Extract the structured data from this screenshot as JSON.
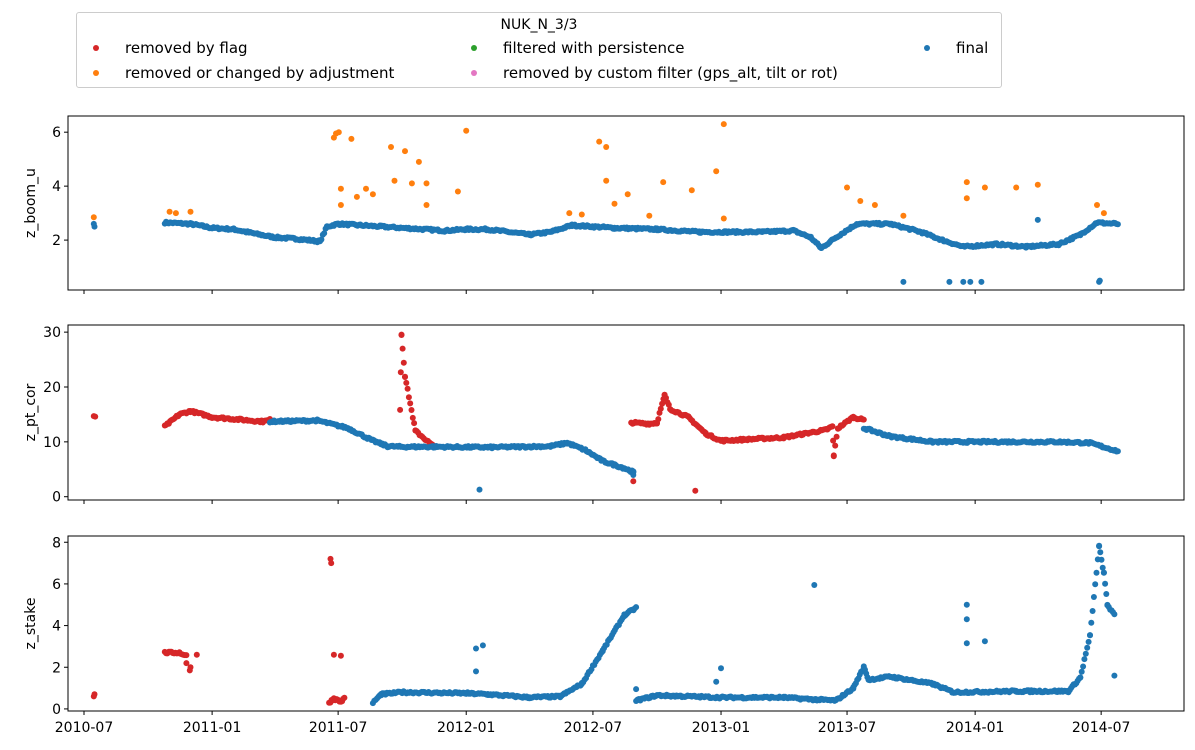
{
  "legend": {
    "title": "NUK_N_3/3",
    "items": [
      {
        "label": "removed by flag",
        "color": "#d62728"
      },
      {
        "label": "removed or changed by adjustment",
        "color": "#ff7f0e"
      },
      {
        "label": "filtered with persistence",
        "color": "#2ca02c"
      },
      {
        "label": "removed by custom filter (gps_alt, tilt or rot)",
        "color": "#e377c2"
      },
      {
        "label": "final",
        "color": "#1f77b4"
      }
    ]
  },
  "chart_data": [
    {
      "type": "scatter",
      "ylabel": "z_boom_u",
      "ylim": [
        0.15,
        6.6
      ],
      "yticks": [
        2,
        4,
        6
      ],
      "xlim": [
        "2010-06-08",
        "2014-10-28"
      ],
      "grid": false,
      "series": [
        {
          "name": "removed or changed by adjustment",
          "color": "#ff7f0e",
          "points": [
            [
              "2010-07-15",
              2.85
            ],
            [
              "2010-11-01",
              3.05
            ],
            [
              "2010-11-10",
              3.0
            ],
            [
              "2010-12-01",
              3.05
            ],
            [
              "2011-06-25",
              5.8
            ],
            [
              "2011-06-28",
              5.95
            ],
            [
              "2011-07-02",
              6.0
            ],
            [
              "2011-07-05",
              3.9
            ],
            [
              "2011-07-05",
              3.3
            ],
            [
              "2011-07-20",
              5.75
            ],
            [
              "2011-07-28",
              3.6
            ],
            [
              "2011-08-10",
              3.9
            ],
            [
              "2011-08-20",
              3.7
            ],
            [
              "2011-09-15",
              5.45
            ],
            [
              "2011-09-20",
              4.2
            ],
            [
              "2011-10-05",
              5.3
            ],
            [
              "2011-10-15",
              4.1
            ],
            [
              "2011-10-25",
              4.9
            ],
            [
              "2011-11-05",
              4.1
            ],
            [
              "2011-11-05",
              3.3
            ],
            [
              "2011-12-20",
              3.8
            ],
            [
              "2012-01-01",
              6.05
            ],
            [
              "2012-05-28",
              3.0
            ],
            [
              "2012-06-15",
              2.95
            ],
            [
              "2012-07-10",
              5.65
            ],
            [
              "2012-07-20",
              5.45
            ],
            [
              "2012-07-20",
              4.2
            ],
            [
              "2012-08-01",
              3.35
            ],
            [
              "2012-08-20",
              3.7
            ],
            [
              "2012-09-20",
              2.9
            ],
            [
              "2012-10-10",
              4.15
            ],
            [
              "2012-11-20",
              3.85
            ],
            [
              "2012-12-25",
              4.55
            ],
            [
              "2013-01-05",
              6.3
            ],
            [
              "2013-01-05",
              2.8
            ],
            [
              "2013-07-01",
              3.95
            ],
            [
              "2013-07-20",
              3.45
            ],
            [
              "2013-08-10",
              3.3
            ],
            [
              "2013-09-20",
              2.9
            ],
            [
              "2013-12-20",
              4.15
            ],
            [
              "2013-12-20",
              3.55
            ],
            [
              "2014-01-15",
              3.95
            ],
            [
              "2014-03-01",
              3.95
            ],
            [
              "2014-04-01",
              4.05
            ],
            [
              "2014-06-25",
              3.3
            ],
            [
              "2014-07-05",
              3.0
            ]
          ]
        },
        {
          "name": "final",
          "color": "#1f77b4",
          "points": [
            [
              "2010-07-15",
              2.6
            ],
            [
              "2010-07-16",
              2.5
            ],
            [
              "2013-09-20",
              0.45
            ],
            [
              "2013-11-25",
              0.45
            ],
            [
              "2013-12-15",
              0.45
            ],
            [
              "2013-12-25",
              0.45
            ],
            [
              "2014-01-10",
              0.45
            ],
            [
              "2014-04-01",
              2.75
            ],
            [
              "2014-06-28",
              0.45
            ],
            [
              "2014-06-29",
              0.5
            ]
          ],
          "line": [
            [
              "2010-10-25",
              2.65
            ],
            [
              "2010-12-01",
              2.6
            ],
            [
              "2011-01-01",
              2.45
            ],
            [
              "2011-02-01",
              2.4
            ],
            [
              "2011-03-01",
              2.25
            ],
            [
              "2011-04-01",
              2.1
            ],
            [
              "2011-05-01",
              2.05
            ],
            [
              "2011-06-05",
              1.95
            ],
            [
              "2011-06-15",
              2.5
            ],
            [
              "2011-07-01",
              2.6
            ],
            [
              "2011-09-01",
              2.5
            ],
            [
              "2011-12-01",
              2.35
            ],
            [
              "2012-01-01",
              2.4
            ],
            [
              "2012-02-01",
              2.4
            ],
            [
              "2012-04-01",
              2.2
            ],
            [
              "2012-05-01",
              2.3
            ],
            [
              "2012-06-01",
              2.55
            ],
            [
              "2012-08-01",
              2.45
            ],
            [
              "2012-10-01",
              2.4
            ],
            [
              "2012-12-01",
              2.3
            ],
            [
              "2013-03-01",
              2.3
            ],
            [
              "2013-04-15",
              2.35
            ],
            [
              "2013-05-10",
              2.1
            ],
            [
              "2013-05-25",
              1.7
            ],
            [
              "2013-06-15",
              2.1
            ],
            [
              "2013-07-15",
              2.6
            ],
            [
              "2013-09-01",
              2.6
            ],
            [
              "2013-10-15",
              2.3
            ],
            [
              "2013-11-15",
              2.0
            ],
            [
              "2013-12-15",
              1.75
            ],
            [
              "2014-02-01",
              1.85
            ],
            [
              "2014-03-15",
              1.75
            ],
            [
              "2014-05-01",
              1.85
            ],
            [
              "2014-06-01",
              2.2
            ],
            [
              "2014-06-25",
              2.65
            ],
            [
              "2014-07-25",
              2.6
            ]
          ],
          "gaps": [
            [
              "2010-07-20",
              "2010-10-24"
            ]
          ]
        }
      ]
    },
    {
      "type": "scatter",
      "ylabel": "z_pt_cor",
      "ylim": [
        -0.6,
        31.3
      ],
      "yticks": [
        0,
        10,
        20,
        30
      ],
      "xlim": [
        "2010-06-08",
        "2014-10-28"
      ],
      "grid": false,
      "series": [
        {
          "name": "removed by flag",
          "color": "#d62728",
          "points": [
            [
              "2010-07-15",
              14.7
            ],
            [
              "2010-07-17",
              14.6
            ],
            [
              "2012-08-28",
              2.8
            ],
            [
              "2012-11-25",
              1.1
            ]
          ],
          "line": [
            [
              "2010-10-25",
              12.8
            ],
            [
              "2010-11-15",
              15.0
            ],
            [
              "2010-12-01",
              15.6
            ],
            [
              "2011-01-01",
              14.5
            ],
            [
              "2011-03-15",
              13.7
            ],
            [
              "2011-03-25",
              14.0
            ]
          ],
          "line2": [
            [
              "2011-09-28",
              16.0
            ],
            [
              "2011-09-30",
              29.6
            ],
            [
              "2011-10-05",
              22.0
            ],
            [
              "2011-10-20",
              12.0
            ],
            [
              "2011-11-15",
              9.2
            ]
          ],
          "line3": [
            [
              "2012-08-25",
              13.5
            ],
            [
              "2012-09-20",
              13.3
            ],
            [
              "2012-10-01",
              13.5
            ],
            [
              "2012-10-12",
              18.5
            ],
            [
              "2012-10-20",
              16.0
            ],
            [
              "2012-11-15",
              14.5
            ],
            [
              "2012-12-10",
              11.5
            ],
            [
              "2013-01-01",
              10.2
            ],
            [
              "2013-04-01",
              10.8
            ],
            [
              "2013-06-01",
              12.2
            ],
            [
              "2013-06-10",
              12.8
            ],
            [
              "2013-06-12",
              7.5
            ],
            [
              "2013-06-18",
              12.5
            ],
            [
              "2013-07-10",
              14.5
            ],
            [
              "2013-07-25",
              14.0
            ]
          ]
        },
        {
          "name": "final",
          "color": "#1f77b4",
          "points": [
            [
              "2012-01-20",
              1.3
            ]
          ],
          "line": [
            [
              "2011-03-25",
              13.7
            ],
            [
              "2011-06-01",
              13.9
            ],
            [
              "2011-07-15",
              12.5
            ],
            [
              "2011-08-20",
              10.2
            ],
            [
              "2011-09-10",
              9.2
            ],
            [
              "2011-09-27",
              9.1
            ],
            [
              "2011-11-15",
              9.1
            ],
            [
              "2012-02-01",
              9.0
            ],
            [
              "2012-05-01",
              9.2
            ],
            [
              "2012-05-25",
              9.8
            ],
            [
              "2012-06-20",
              8.5
            ],
            [
              "2012-07-15",
              6.5
            ],
            [
              "2012-08-15",
              5.2
            ],
            [
              "2012-08-28",
              4.5
            ],
            [
              "2012-08-28",
              4.0
            ]
          ],
          "line2": [
            [
              "2013-07-25",
              12.5
            ],
            [
              "2013-09-01",
              11.0
            ],
            [
              "2013-11-01",
              10.0
            ],
            [
              "2014-05-01",
              10.0
            ],
            [
              "2014-06-15",
              9.8
            ],
            [
              "2014-07-25",
              8.3
            ]
          ]
        }
      ]
    },
    {
      "type": "scatter",
      "ylabel": "z_stake",
      "ylim": [
        -0.1,
        8.3
      ],
      "yticks": [
        0,
        2,
        4,
        6,
        8
      ],
      "xlim": [
        "2010-06-08",
        "2014-10-28"
      ],
      "grid": false,
      "series": [
        {
          "name": "removed by flag",
          "color": "#d62728",
          "points": [
            [
              "2010-07-15",
              0.6
            ],
            [
              "2010-07-16",
              0.7
            ],
            [
              "2011-06-20",
              7.2
            ],
            [
              "2011-06-21",
              7.0
            ],
            [
              "2011-06-25",
              2.6
            ],
            [
              "2011-07-05",
              2.55
            ],
            [
              "2010-11-25",
              2.2
            ],
            [
              "2010-11-30",
              1.85
            ],
            [
              "2010-12-01",
              2.0
            ],
            [
              "2010-12-10",
              2.6
            ]
          ],
          "line": [
            [
              "2010-10-25",
              2.7
            ],
            [
              "2010-11-15",
              2.7
            ],
            [
              "2010-11-25",
              2.55
            ]
          ],
          "line2": [
            [
              "2011-06-18",
              0.3
            ],
            [
              "2011-06-25",
              0.5
            ],
            [
              "2011-07-05",
              0.35
            ],
            [
              "2011-07-10",
              0.5
            ]
          ]
        },
        {
          "name": "final",
          "color": "#1f77b4",
          "points": [
            [
              "2012-01-15",
              2.9
            ],
            [
              "2012-01-25",
              3.05
            ],
            [
              "2012-01-15",
              1.8
            ],
            [
              "2012-09-01",
              0.95
            ],
            [
              "2013-01-01",
              1.95
            ],
            [
              "2012-12-25",
              1.3
            ],
            [
              "2013-05-15",
              5.95
            ],
            [
              "2013-12-20",
              5.0
            ],
            [
              "2013-12-20",
              4.3
            ],
            [
              "2013-12-20",
              3.15
            ],
            [
              "2014-01-15",
              3.25
            ],
            [
              "2014-07-20",
              1.6
            ]
          ],
          "line": [
            [
              "2011-08-20",
              0.3
            ],
            [
              "2011-09-01",
              0.7
            ],
            [
              "2011-10-01",
              0.8
            ],
            [
              "2012-01-01",
              0.75
            ],
            [
              "2012-02-01",
              0.7
            ],
            [
              "2012-04-01",
              0.55
            ],
            [
              "2012-05-15",
              0.6
            ],
            [
              "2012-06-15",
              1.2
            ],
            [
              "2012-07-15",
              2.8
            ],
            [
              "2012-08-15",
              4.5
            ],
            [
              "2012-09-01",
              4.85
            ]
          ],
          "line2": [
            [
              "2012-09-01",
              0.4
            ],
            [
              "2012-10-01",
              0.65
            ],
            [
              "2013-01-01",
              0.55
            ],
            [
              "2013-04-01",
              0.55
            ],
            [
              "2013-05-15",
              0.45
            ],
            [
              "2013-06-15",
              0.4
            ],
            [
              "2013-07-10",
              1.0
            ],
            [
              "2013-07-25",
              2.0
            ],
            [
              "2013-08-01",
              1.4
            ],
            [
              "2013-09-01",
              1.55
            ],
            [
              "2013-11-01",
              1.2
            ],
            [
              "2013-12-01",
              0.8
            ],
            [
              "2014-03-01",
              0.85
            ],
            [
              "2014-05-15",
              0.85
            ],
            [
              "2014-06-01",
              1.5
            ],
            [
              "2014-06-15",
              3.5
            ],
            [
              "2014-06-28",
              7.8
            ],
            [
              "2014-07-05",
              6.5
            ],
            [
              "2014-07-10",
              5.0
            ],
            [
              "2014-07-20",
              4.5
            ]
          ]
        }
      ]
    }
  ],
  "xticklabels": [
    "2010-07",
    "2011-01",
    "2011-07",
    "2012-01",
    "2012-07",
    "2013-01",
    "2013-07",
    "2014-01",
    "2014-07"
  ]
}
